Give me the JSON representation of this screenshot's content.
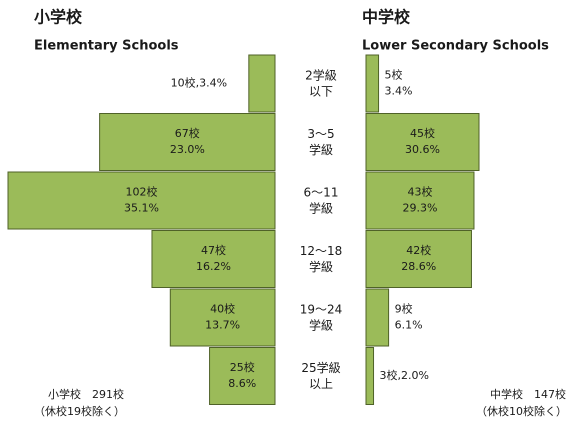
{
  "chart_data": [
    {
      "type": "hbar-left",
      "title": "小学校",
      "subtitle": "Elementary Schools",
      "categories": [
        "2学級\n以下",
        "3～5\n学級",
        "6～11\n学級",
        "12～18\n学級",
        "19～24\n学級",
        "25学級\n以上"
      ],
      "values": [
        10,
        67,
        102,
        47,
        40,
        25
      ],
      "value_labels": [
        "10校,3.4%",
        "67校\n23.0%",
        "102校\n35.1%",
        "47校\n16.2%",
        "40校\n13.7%",
        "25校\n8.6%"
      ],
      "xlim": [
        0,
        102
      ],
      "color": "#9bbb59",
      "annotations": [
        "小学校　291校",
        "（休校19校除く）"
      ]
    },
    {
      "type": "hbar-right",
      "title": "中学校",
      "subtitle": "Lower Secondary Schools",
      "values": [
        5,
        45,
        43,
        42,
        9,
        3
      ],
      "value_labels": [
        "5校\n3.4%",
        "45校\n30.6%",
        "43校\n29.3%",
        "42校\n28.6%",
        "9校\n6.1%",
        "3校,2.0%"
      ],
      "xlim": [
        0,
        45
      ],
      "color": "#9bbb59",
      "annotations": [
        "中学校　147校",
        "（休校10校除く）"
      ]
    }
  ]
}
